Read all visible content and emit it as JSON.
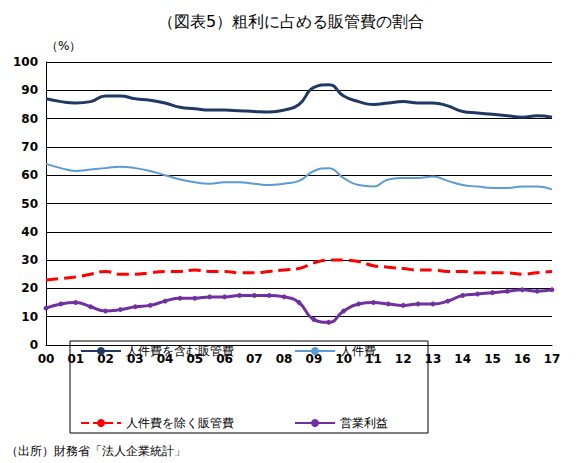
{
  "chart_data": {
    "type": "line",
    "title": "（図表5）粗利に占める販管費の割合",
    "ylabel": "（%）",
    "source": "（出所）財務省「法人企業統計」",
    "categories": [
      "00",
      null,
      "01",
      null,
      "02",
      null,
      "03",
      null,
      "04",
      null,
      "05",
      null,
      "06",
      null,
      "07",
      null,
      "08",
      null,
      "09",
      null,
      "10",
      null,
      "11",
      null,
      "12",
      null,
      "13",
      null,
      "14",
      null,
      "15",
      null,
      "16",
      null,
      "17"
    ],
    "series": [
      {
        "name": "人件費を含む販管費",
        "color": "#1f3864",
        "line_style": "solid",
        "marker": "none",
        "values": [
          87,
          86,
          85.5,
          86,
          88,
          88,
          87,
          86.5,
          85.5,
          84,
          83.5,
          83,
          83,
          82.8,
          82.5,
          82.3,
          83,
          85,
          91,
          92,
          88,
          86,
          85,
          85.5,
          86,
          85.5,
          85.5,
          84.5,
          82.5,
          82,
          81.5,
          81,
          80.5,
          81,
          80.5
        ]
      },
      {
        "name": "人件費",
        "color": "#5b9bd5",
        "line_style": "solid",
        "marker": "none",
        "values": [
          64,
          62.5,
          61.5,
          62,
          62.5,
          63,
          62.5,
          61.5,
          60,
          58.5,
          57.5,
          57,
          57.5,
          57.5,
          57,
          56.5,
          57,
          58,
          61.5,
          62.5,
          59,
          56.5,
          56,
          58.5,
          59,
          59,
          59.5,
          58,
          56.5,
          56,
          55.5,
          55.5,
          56,
          56,
          55
        ]
      },
      {
        "name": "人件費を除く販管費",
        "color": "#ff0000",
        "line_style": "dashed",
        "marker": "none",
        "values": [
          23,
          23.5,
          24,
          25,
          26,
          25,
          25,
          25.5,
          26,
          26,
          26.5,
          26,
          26,
          25.5,
          25.5,
          26,
          26.5,
          27,
          29,
          30,
          30,
          29.5,
          28,
          27.5,
          27,
          26.5,
          26.5,
          26,
          26,
          25.5,
          25.5,
          25.5,
          25,
          25.5,
          26
        ]
      },
      {
        "name": "営業利益",
        "color": "#7030a0",
        "line_style": "solid",
        "marker": "circle",
        "values": [
          13,
          14.5,
          15,
          13.5,
          12,
          12.5,
          13.5,
          14,
          15.5,
          16.5,
          16.5,
          17,
          17,
          17.5,
          17.5,
          17.5,
          17,
          15,
          9,
          8,
          12,
          14.5,
          15,
          14.5,
          14,
          14.5,
          14.5,
          15.5,
          17.5,
          18,
          18.5,
          19,
          19.5,
          19,
          19.5
        ]
      }
    ],
    "ylim": [
      0,
      100
    ],
    "yticks": [
      0,
      10,
      20,
      30,
      40,
      50,
      60,
      70,
      80,
      90,
      100
    ],
    "grid": true,
    "legend": "bottom"
  }
}
